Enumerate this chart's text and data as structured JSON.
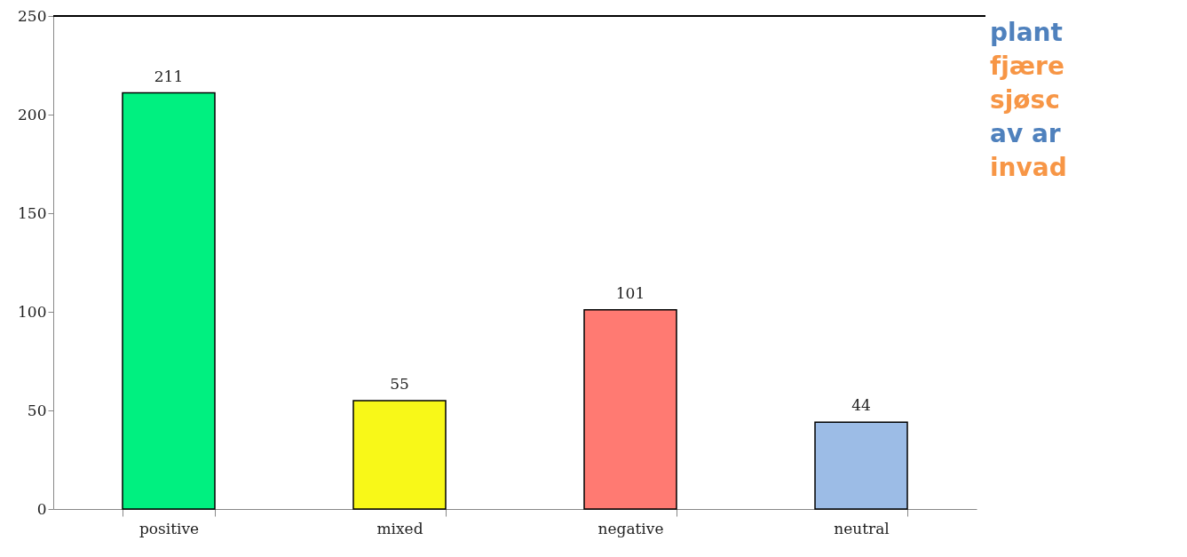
{
  "chart_data": {
    "type": "bar",
    "categories": [
      "positive",
      "mixed",
      "negative",
      "neutral"
    ],
    "values": [
      211,
      55,
      101,
      44
    ],
    "colors": [
      "#00f080",
      "#f8f818",
      "#ff7a72",
      "#9cbce6"
    ],
    "ylim": [
      0,
      250
    ],
    "yticks": [
      0,
      50,
      100,
      150,
      200,
      250
    ],
    "data_labels": true,
    "grid": false,
    "annotations": [
      "plant",
      "fjære",
      "sjøsc",
      "av ar",
      "invad"
    ]
  }
}
